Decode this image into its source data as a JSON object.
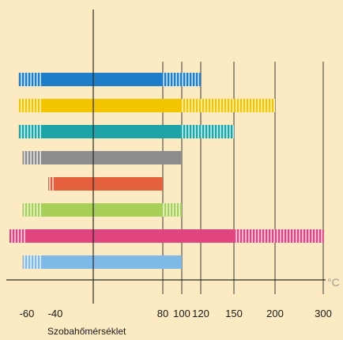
{
  "chart_data": {
    "type": "bar",
    "xlabel": "Szobahőmérséklet",
    "unit": "°C",
    "reference_line": 20,
    "ticks": [
      {
        "value": -60,
        "label": "-60"
      },
      {
        "value": -40,
        "label": "-40"
      },
      {
        "value": 80,
        "label": "80"
      },
      {
        "value": 100,
        "label": "100"
      },
      {
        "value": 120,
        "label": "120"
      },
      {
        "value": 150,
        "label": "150"
      },
      {
        "value": 200,
        "label": "200"
      },
      {
        "value": 300,
        "label": "300"
      }
    ],
    "background_color": "#fcebc2",
    "bars": [
      {
        "color": "#1e7dc8",
        "short_term_min": -70,
        "min": -50,
        "max": 80,
        "short_term_max": 120
      },
      {
        "color": "#f2c500",
        "short_term_min": -70,
        "min": -50,
        "max": 100,
        "short_term_max": 200
      },
      {
        "color": "#1ca4a6",
        "short_term_min": -70,
        "min": -50,
        "max": 100,
        "short_term_max": 150
      },
      {
        "color": "#8c8c8c",
        "short_term_min": -65,
        "min": -50,
        "max": 100,
        "short_term_max": 100
      },
      {
        "color": "#e5603d",
        "short_term_min": -45,
        "min": -40,
        "max": 80,
        "short_term_max": 80
      },
      {
        "color": "#a8cf57",
        "short_term_min": -65,
        "min": -50,
        "max": 80,
        "short_term_max": 100
      },
      {
        "color": "#e0457f",
        "short_term_min": -80,
        "min": -60,
        "max": 150,
        "short_term_max": 300
      },
      {
        "color": "#7fb9e6",
        "short_term_min": -65,
        "min": -50,
        "max": 100,
        "short_term_max": 100
      }
    ]
  }
}
